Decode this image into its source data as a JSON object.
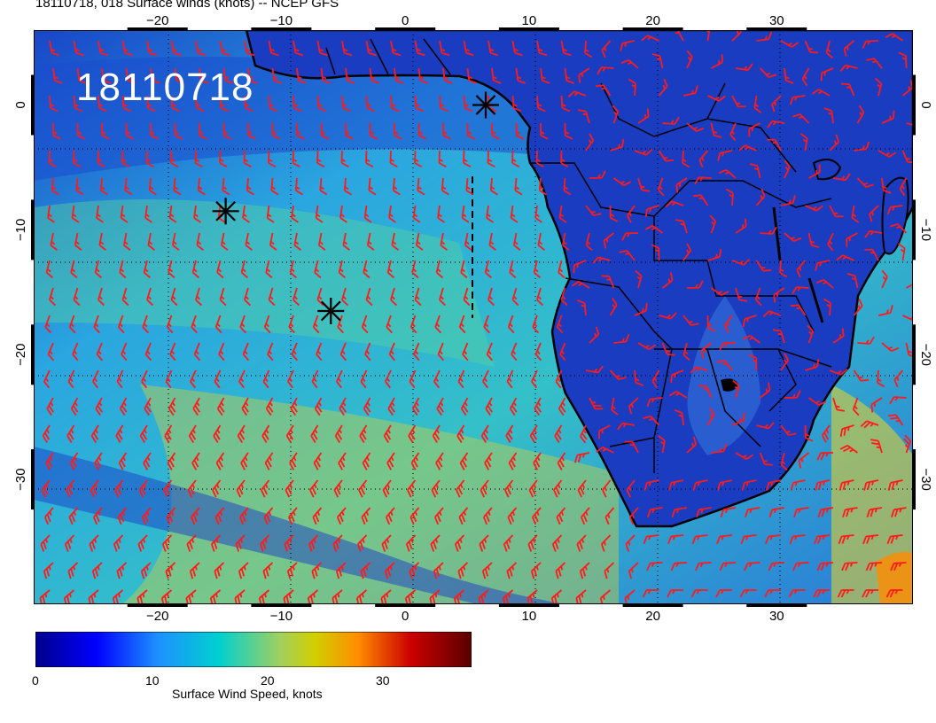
{
  "title": "18110718, 018 Surface winds (knots) -- NCEP GFS",
  "run_stamp": "18110718",
  "map": {
    "region": "South Atlantic and Southern Africa",
    "lon_range": [
      -30,
      41
    ],
    "lat_range": [
      -40,
      6
    ],
    "lon_ticks": [
      -20,
      -10,
      0,
      10,
      20,
      30
    ],
    "lat_ticks": [
      0,
      -10,
      -20,
      -30
    ],
    "lon_tick_labels": [
      "−20",
      "−10",
      "0",
      "10",
      "20",
      "30"
    ],
    "lat_tick_labels": [
      "0",
      "−10",
      "−20",
      "−30"
    ],
    "barb_color": "#ff1a1a",
    "coast_color": "#000000",
    "markers": [
      {
        "name": "storm-marker-1",
        "lon": 6.5,
        "lat": 0.0
      },
      {
        "name": "storm-marker-2",
        "lon": -14.5,
        "lat": -8.5
      },
      {
        "name": "storm-marker-3",
        "lon": -6.0,
        "lat": -16.5
      }
    ]
  },
  "colorbar": {
    "title": "Surface Wind Speed, knots",
    "ticks": [
      "0",
      "10",
      "20",
      "30"
    ],
    "range": [
      0,
      38
    ],
    "colors": [
      "#00008b",
      "#0000ff",
      "#1e90ff",
      "#00d0d0",
      "#d0d000",
      "#ff8c00",
      "#cc0000",
      "#5a0000"
    ]
  }
}
